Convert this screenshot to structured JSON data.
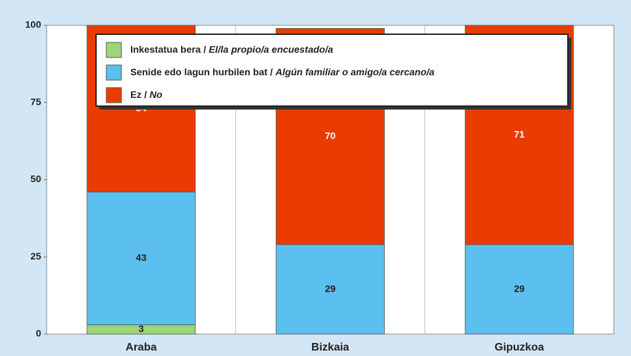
{
  "chart_data": {
    "type": "stacked_bar",
    "categories": [
      "Araba",
      "Bizkaia",
      "Gipuzkoa"
    ],
    "series": [
      {
        "name": "Inkestatua bera / El/la propio/a encuestado/a",
        "color": "#9ed47a",
        "values": [
          3,
          null,
          null
        ]
      },
      {
        "name": "Senide edo lagun hurbilen bat / Algún familiar o amigo/a cercano/a",
        "color": "#5bbff0",
        "values": [
          43,
          29,
          29
        ]
      },
      {
        "name": "Ez / No",
        "color": "#ea3c00",
        "values": [
          54,
          70,
          71
        ]
      }
    ],
    "ylim": [
      0,
      100
    ],
    "yticks": [
      0,
      25,
      50,
      75,
      100
    ],
    "legend": "top"
  }
}
